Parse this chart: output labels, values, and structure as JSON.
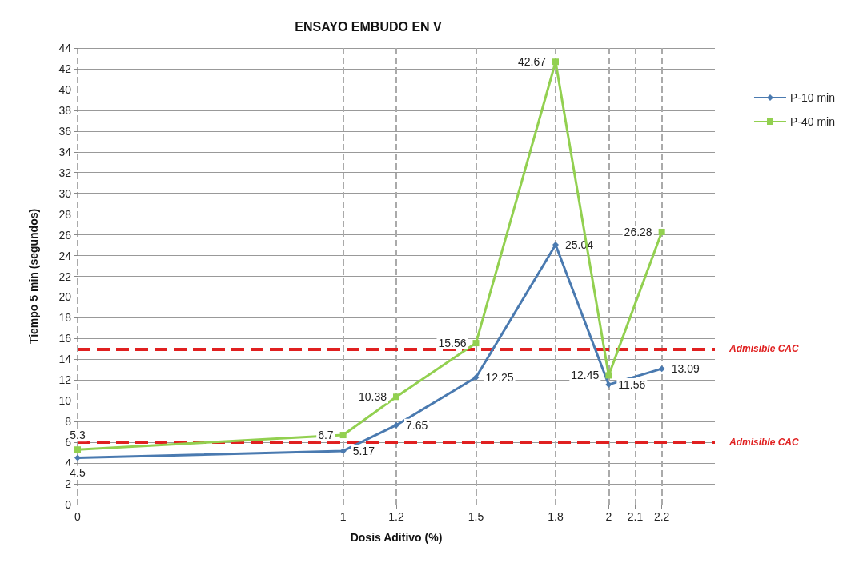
{
  "chart_data": {
    "type": "line",
    "title": "ENSAYO EMBUDO EN V",
    "xlabel": "Dosis Aditivo (%)",
    "ylabel": "Tiempo 5 min (segundos)",
    "x": [
      0,
      1,
      1.2,
      1.5,
      1.8,
      2,
      2.2
    ],
    "series": [
      {
        "name": "P-10 min",
        "color": "#4a7ab0",
        "marker": "diamond",
        "values": [
          4.5,
          5.17,
          7.65,
          12.25,
          25.04,
          11.56,
          13.09
        ]
      },
      {
        "name": "P-40 min",
        "color": "#92d050",
        "marker": "square",
        "values": [
          5.3,
          6.7,
          10.38,
          15.56,
          42.67,
          12.45,
          26.28
        ]
      }
    ],
    "xlim": [
      0,
      2.4
    ],
    "xticks": [
      0,
      1,
      1.2,
      1.5,
      1.8,
      2,
      2.1,
      2.2
    ],
    "ylim": [
      0,
      44
    ],
    "yticks": [
      0,
      2,
      4,
      6,
      8,
      10,
      12,
      14,
      16,
      18,
      20,
      22,
      24,
      26,
      28,
      30,
      32,
      34,
      36,
      38,
      40,
      42,
      44
    ],
    "ref_lines": [
      {
        "axis": "y",
        "value": 15,
        "label": "Admisible CAC",
        "color": "#e02020",
        "line_style": "dashed"
      },
      {
        "axis": "y",
        "value": 6,
        "label": "Admisible CAC",
        "color": "#e02020",
        "line_style": "dashed"
      }
    ],
    "data_labels": true,
    "grid": true,
    "legend": "top right",
    "line_style": "solid"
  }
}
